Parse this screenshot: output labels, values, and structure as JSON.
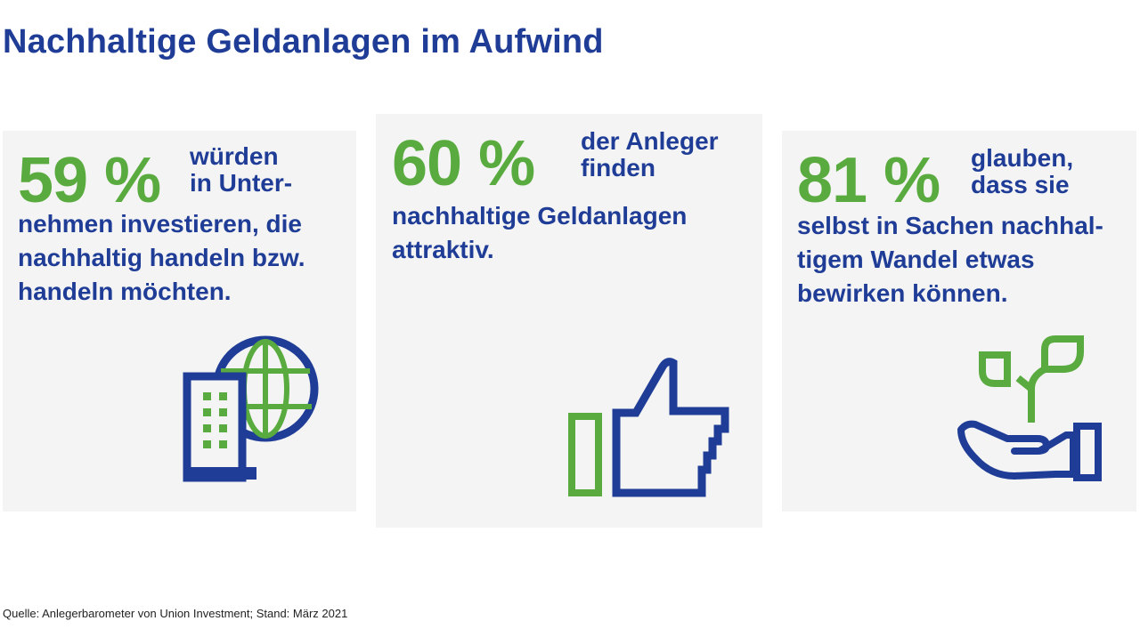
{
  "title": "Nachhaltige Geldanlagen im Aufwind",
  "colors": {
    "blue": "#1f3d96",
    "green": "#5aab3f",
    "card": "#f4f4f4"
  },
  "cards": [
    {
      "percent": "59 %",
      "side_lines": [
        "würden",
        "in Unter-"
      ],
      "body_lines": [
        "nehmen investieren, die",
        "nachhaltig handeln bzw.",
        "handeln möchten."
      ],
      "icon": "building-globe-icon"
    },
    {
      "percent": "60 %",
      "side_lines": [
        "der Anleger",
        "finden"
      ],
      "body_lines": [
        "nachhaltige Geldanlagen",
        "attraktiv."
      ],
      "icon": "thumbs-up-icon"
    },
    {
      "percent": "81 %",
      "side_lines": [
        "glauben,",
        "dass sie"
      ],
      "body_lines": [
        "selbst in Sachen nachhal-",
        "tigem Wandel etwas",
        "bewirken können."
      ],
      "icon": "hand-plant-icon"
    }
  ],
  "source": "Quelle: Anlegerbarometer von Union Investment; Stand: März 2021"
}
